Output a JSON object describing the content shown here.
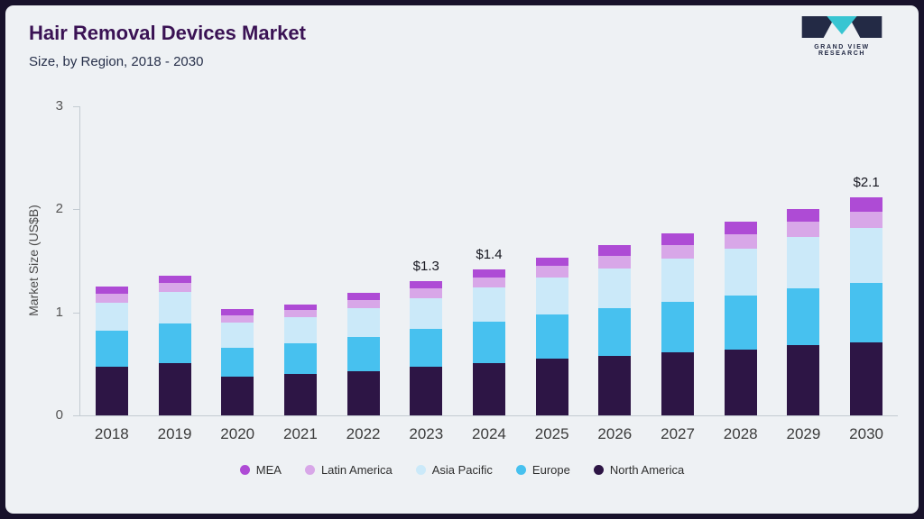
{
  "header": {
    "title": "Hair Removal Devices Market",
    "subtitle": "Size, by Region, 2018 - 2030"
  },
  "logo": {
    "text": "GRAND VIEW RESEARCH",
    "dark_color": "#232a45",
    "teal_color": "#38c5d2"
  },
  "chart_data": {
    "type": "bar",
    "stacked": true,
    "title": "Hair Removal Devices Market Size, by Region, 2018 - 2030",
    "xlabel": "",
    "ylabel": "Market Size (US$B)",
    "ylim": [
      0,
      3
    ],
    "yticks": [
      0,
      1,
      2,
      3
    ],
    "grid": false,
    "legend_position": "bottom",
    "categories": [
      "2018",
      "2019",
      "2020",
      "2021",
      "2022",
      "2023",
      "2024",
      "2025",
      "2026",
      "2027",
      "2028",
      "2029",
      "2030"
    ],
    "series": [
      {
        "name": "North America",
        "color": "#2d1545",
        "values": [
          0.47,
          0.51,
          0.38,
          0.4,
          0.43,
          0.47,
          0.51,
          0.55,
          0.58,
          0.61,
          0.64,
          0.68,
          0.71
        ]
      },
      {
        "name": "Europe",
        "color": "#47c1ef",
        "values": [
          0.35,
          0.38,
          0.28,
          0.3,
          0.33,
          0.37,
          0.4,
          0.43,
          0.46,
          0.49,
          0.52,
          0.55,
          0.58
        ]
      },
      {
        "name": "Asia Pacific",
        "color": "#cbe9f9",
        "values": [
          0.27,
          0.31,
          0.24,
          0.25,
          0.28,
          0.3,
          0.33,
          0.36,
          0.39,
          0.42,
          0.46,
          0.5,
          0.53
        ]
      },
      {
        "name": "Latin America",
        "color": "#d8a7e8",
        "values": [
          0.09,
          0.09,
          0.07,
          0.07,
          0.08,
          0.09,
          0.1,
          0.11,
          0.12,
          0.13,
          0.14,
          0.15,
          0.16
        ]
      },
      {
        "name": "MEA",
        "color": "#ae4bd5",
        "values": [
          0.07,
          0.07,
          0.06,
          0.06,
          0.07,
          0.07,
          0.08,
          0.08,
          0.1,
          0.12,
          0.12,
          0.12,
          0.14
        ]
      }
    ],
    "legend": [
      "MEA",
      "Latin America",
      "Asia Pacific",
      "Europe",
      "North America"
    ],
    "annotations": [
      {
        "category": "2023",
        "label": "$1.3"
      },
      {
        "category": "2024",
        "label": "$1.4"
      },
      {
        "category": "2030",
        "label": "$2.1"
      }
    ]
  }
}
